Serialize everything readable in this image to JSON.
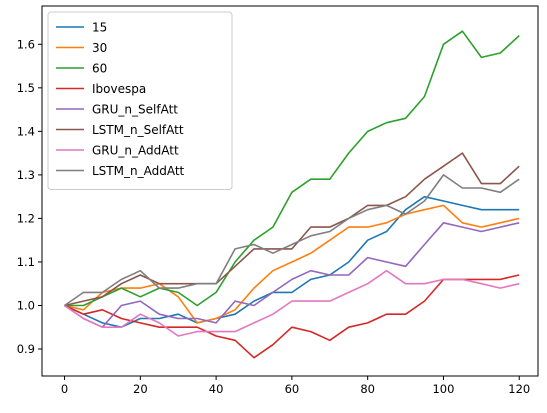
{
  "chart_data": {
    "type": "line",
    "title": "",
    "xlabel": "",
    "ylabel": "",
    "xlim": [
      -5.95,
      124.95
    ],
    "ylim": [
      0.838,
      1.688
    ],
    "xticks": [
      0,
      20,
      40,
      60,
      80,
      100,
      120
    ],
    "yticks": [
      0.9,
      1.0,
      1.1,
      1.2,
      1.3,
      1.4,
      1.5,
      1.6
    ],
    "xtick_labels": [
      "0",
      "20",
      "40",
      "60",
      "80",
      "100",
      "120"
    ],
    "ytick_labels": [
      "0.9",
      "1.0",
      "1.1",
      "1.2",
      "1.3",
      "1.4",
      "1.5",
      "1.6"
    ],
    "grid": false,
    "legend_position": "top-left",
    "x_step": 5,
    "series": [
      {
        "name": "15",
        "color": "#1f77b4",
        "values": [
          1.0,
          0.98,
          0.96,
          0.95,
          0.97,
          0.97,
          0.98,
          0.96,
          0.97,
          0.98,
          1.01,
          1.03,
          1.03,
          1.06,
          1.07,
          1.1,
          1.15,
          1.17,
          1.22,
          1.25,
          1.24,
          1.23,
          1.22,
          1.22,
          1.22
        ]
      },
      {
        "name": "30",
        "color": "#ff7f0e",
        "values": [
          1.0,
          0.99,
          1.03,
          1.04,
          1.04,
          1.05,
          1.02,
          0.96,
          0.97,
          0.99,
          1.04,
          1.08,
          1.1,
          1.12,
          1.15,
          1.18,
          1.18,
          1.19,
          1.21,
          1.22,
          1.23,
          1.19,
          1.18,
          1.19,
          1.2
        ]
      },
      {
        "name": "60",
        "color": "#2ca02c",
        "values": [
          1.0,
          1.0,
          1.02,
          1.04,
          1.02,
          1.04,
          1.03,
          1.0,
          1.03,
          1.1,
          1.15,
          1.18,
          1.26,
          1.29,
          1.29,
          1.35,
          1.4,
          1.42,
          1.43,
          1.48,
          1.6,
          1.63,
          1.57,
          1.58,
          1.62
        ]
      },
      {
        "name": "Ibovespa",
        "color": "#d62728",
        "values": [
          1.0,
          0.98,
          0.99,
          0.97,
          0.96,
          0.95,
          0.95,
          0.95,
          0.93,
          0.92,
          0.88,
          0.91,
          0.95,
          0.94,
          0.92,
          0.95,
          0.96,
          0.98,
          0.98,
          1.01,
          1.06,
          1.06,
          1.06,
          1.06,
          1.07
        ]
      },
      {
        "name": "GRU_n_SelfAtt",
        "color": "#9467bd",
        "values": [
          1.0,
          0.97,
          0.95,
          1.0,
          1.01,
          0.98,
          0.97,
          0.97,
          0.96,
          1.01,
          1.0,
          1.03,
          1.06,
          1.08,
          1.07,
          1.07,
          1.11,
          1.1,
          1.09,
          1.14,
          1.19,
          1.18,
          1.17,
          1.18,
          1.19
        ]
      },
      {
        "name": "LSTM_n_SelfAtt",
        "color": "#8c564b",
        "values": [
          1.0,
          1.01,
          1.02,
          1.05,
          1.07,
          1.05,
          1.05,
          1.05,
          1.05,
          1.09,
          1.13,
          1.13,
          1.13,
          1.18,
          1.18,
          1.2,
          1.23,
          1.23,
          1.25,
          1.29,
          1.32,
          1.35,
          1.28,
          1.28,
          1.32
        ]
      },
      {
        "name": "GRU_n_AddAtt",
        "color": "#e377c2",
        "values": [
          1.0,
          0.97,
          0.95,
          0.95,
          0.98,
          0.96,
          0.93,
          0.94,
          0.94,
          0.94,
          0.96,
          0.98,
          1.01,
          1.01,
          1.01,
          1.03,
          1.05,
          1.08,
          1.05,
          1.05,
          1.06,
          1.06,
          1.05,
          1.04,
          1.05
        ]
      },
      {
        "name": "LSTM_n_AddAtt",
        "color": "#7f7f7f",
        "values": [
          1.0,
          1.03,
          1.03,
          1.06,
          1.08,
          1.04,
          1.04,
          1.05,
          1.05,
          1.13,
          1.14,
          1.12,
          1.14,
          1.16,
          1.17,
          1.2,
          1.22,
          1.23,
          1.21,
          1.24,
          1.3,
          1.27,
          1.27,
          1.26,
          1.29
        ]
      }
    ]
  }
}
